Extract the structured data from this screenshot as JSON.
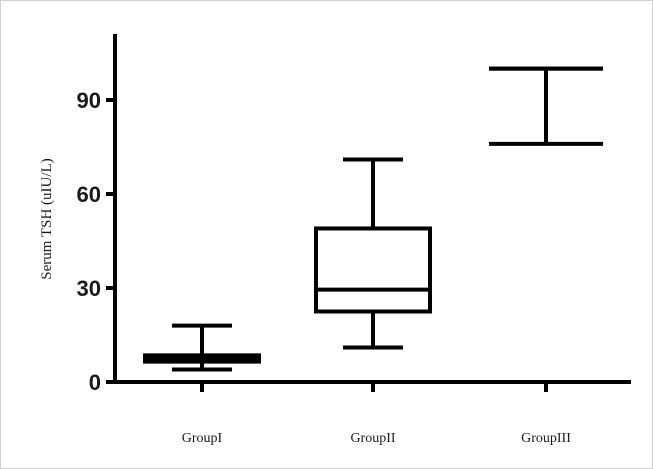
{
  "chart_data": {
    "type": "box",
    "title": "",
    "xlabel": "",
    "ylabel": "Serum TSH (uIU/L)",
    "ylim": [
      0,
      108
    ],
    "yticks": [
      0,
      30,
      60,
      90
    ],
    "grid": false,
    "categories": [
      "GroupI",
      "GroupII",
      "GroupIII"
    ],
    "boxes": [
      {
        "category": "GroupI",
        "min": 4,
        "q1": 6.5,
        "median": 7.5,
        "q3": 8.5,
        "max": 18
      },
      {
        "category": "GroupII",
        "min": 11,
        "q1": 22.5,
        "median": 29.5,
        "q3": 49,
        "max": 71
      },
      {
        "category": "GroupIII",
        "min": 76,
        "q1": 100,
        "median": 100,
        "q3": 100,
        "max": 100
      }
    ],
    "colors": {
      "stroke": "#000000",
      "text": "#1a1a1a"
    }
  }
}
